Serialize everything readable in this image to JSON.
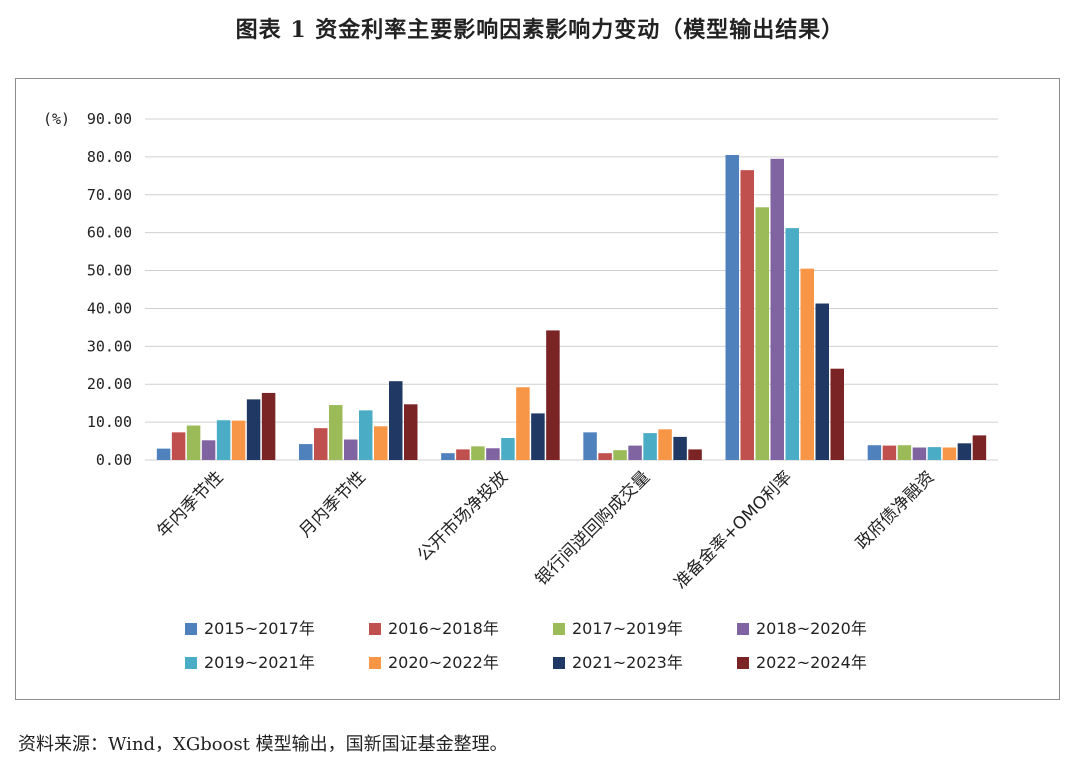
{
  "title": "图表 1  资金利率主要影响因素影响力变动（模型输出结果）",
  "source": "资料来源：Wind，XGboost 模型输出，国新国证基金整理。",
  "chart_data": {
    "type": "bar",
    "unit_label": "(%)",
    "ylim": [
      0,
      90
    ],
    "yticks": [
      "0.00",
      "10.00",
      "20.00",
      "30.00",
      "40.00",
      "50.00",
      "60.00",
      "70.00",
      "80.00",
      "90.00"
    ],
    "grid": true,
    "legend_position": "bottom",
    "categories": [
      "年内季节性",
      "月内季节性",
      "公开市场净投放",
      "银行间逆回购成交量",
      "准备金率+OMO利率",
      "政府债净融资"
    ],
    "series": [
      {
        "name": "2015~2017年",
        "color": "#4f81bd",
        "values": [
          3.0,
          4.2,
          1.8,
          7.3,
          80.5,
          3.9
        ]
      },
      {
        "name": "2016~2018年",
        "color": "#c0504d",
        "values": [
          7.3,
          8.4,
          2.8,
          1.8,
          76.5,
          3.8
        ]
      },
      {
        "name": "2017~2019年",
        "color": "#9bbb59",
        "values": [
          9.1,
          14.5,
          3.6,
          2.6,
          66.7,
          3.9
        ]
      },
      {
        "name": "2018~2020年",
        "color": "#8064a2",
        "values": [
          5.2,
          5.4,
          3.1,
          3.8,
          79.5,
          3.3
        ]
      },
      {
        "name": "2019~2021年",
        "color": "#4bacc6",
        "values": [
          10.5,
          13.1,
          5.8,
          7.1,
          61.2,
          3.4
        ]
      },
      {
        "name": "2020~2022年",
        "color": "#f79646",
        "values": [
          10.4,
          8.9,
          19.2,
          8.1,
          50.5,
          3.3
        ]
      },
      {
        "name": "2021~2023年",
        "color": "#1f3864",
        "values": [
          16.0,
          20.8,
          12.3,
          6.1,
          41.3,
          4.4
        ]
      },
      {
        "name": "2022~2024年",
        "color": "#7b2426",
        "values": [
          17.7,
          14.7,
          34.2,
          2.8,
          24.1,
          6.5
        ]
      }
    ]
  }
}
